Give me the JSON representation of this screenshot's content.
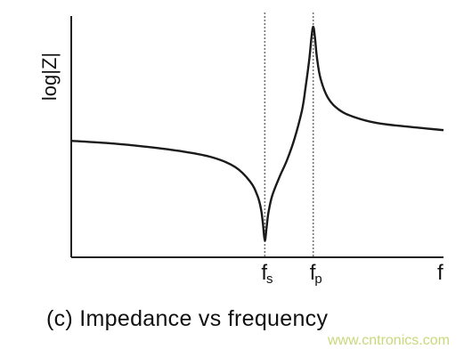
{
  "chart_data": {
    "type": "line",
    "title": "",
    "ylabel": "log|Z|",
    "xlabel": "",
    "x_tick_labels": [
      {
        "base": "f",
        "sub": "s",
        "x": 0.52
      },
      {
        "base": "f",
        "sub": "p",
        "x": 0.65
      },
      {
        "base": "f",
        "sub": "",
        "x": 1.0
      }
    ],
    "reference_lines": [
      {
        "x": 0.52,
        "style": "dotted"
      },
      {
        "x": 0.65,
        "style": "dotted"
      }
    ],
    "xlim": [
      0,
      1
    ],
    "ylim": [
      0,
      1
    ],
    "grid": false,
    "legend": "none",
    "series": [
      {
        "x": [
          0.0,
          0.1,
          0.2,
          0.3,
          0.38,
          0.44,
          0.48,
          0.5,
          0.51,
          0.515,
          0.52,
          0.525,
          0.53,
          0.54,
          0.56,
          0.58,
          0.6,
          0.62,
          0.63,
          0.64,
          0.645,
          0.65,
          0.655,
          0.66,
          0.67,
          0.69,
          0.72,
          0.76,
          0.82,
          0.9,
          1.0
        ],
        "values": [
          0.49,
          0.48,
          0.465,
          0.445,
          0.42,
          0.38,
          0.32,
          0.26,
          0.2,
          0.14,
          0.07,
          0.13,
          0.19,
          0.26,
          0.34,
          0.41,
          0.5,
          0.62,
          0.72,
          0.84,
          0.92,
          0.97,
          0.92,
          0.84,
          0.75,
          0.67,
          0.62,
          0.59,
          0.565,
          0.55,
          0.535
        ]
      }
    ]
  },
  "caption": "(c)  Impedance vs frequency",
  "watermark": "www.cntronics.com",
  "colors": {
    "line": "#1a1a1a",
    "axis": "#222222",
    "dotted": "#777777",
    "watermark": "#c9d87a"
  }
}
